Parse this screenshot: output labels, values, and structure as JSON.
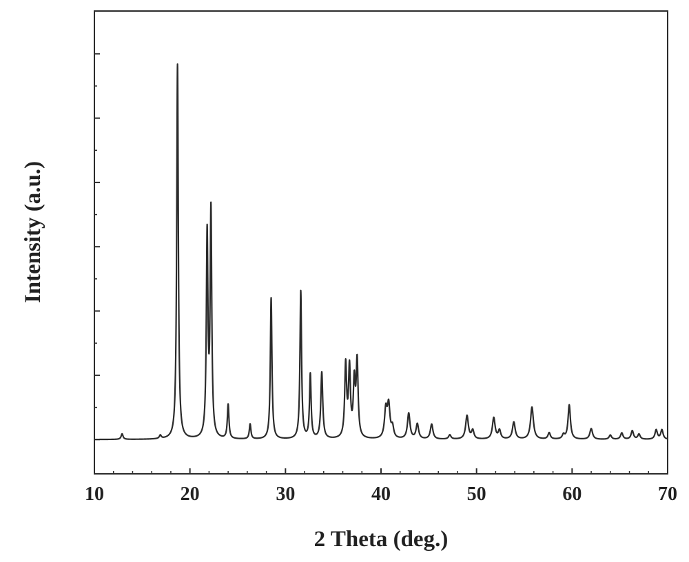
{
  "chart_data": {
    "type": "line",
    "title": "",
    "xlabel": "2 Theta (deg.)",
    "ylabel": "Intensity (a.u.)",
    "xlim": [
      10,
      70
    ],
    "ylim": [
      -8,
      100
    ],
    "x_ticks": [
      "10",
      "20",
      "30",
      "40",
      "50",
      "60",
      "70"
    ],
    "y_tick_values": [
      0,
      15,
      30,
      45,
      60,
      75,
      90
    ],
    "y_tick_labels_shown": false,
    "grid": false,
    "legend": "none",
    "line_color": "#2b2b2b",
    "baseline": 0,
    "peaks": [
      {
        "pos": 12.9,
        "height": 1.3,
        "width": 0.12
      },
      {
        "pos": 16.9,
        "height": 0.8,
        "width": 0.12
      },
      {
        "pos": 18.7,
        "height": 87.5,
        "width": 0.1
      },
      {
        "pos": 21.8,
        "height": 47,
        "width": 0.1
      },
      {
        "pos": 22.2,
        "height": 52.5,
        "width": 0.1
      },
      {
        "pos": 24.0,
        "height": 8,
        "width": 0.1
      },
      {
        "pos": 26.3,
        "height": 3.5,
        "width": 0.1
      },
      {
        "pos": 28.5,
        "height": 33,
        "width": 0.1
      },
      {
        "pos": 31.6,
        "height": 34.5,
        "width": 0.1
      },
      {
        "pos": 32.6,
        "height": 15,
        "width": 0.1
      },
      {
        "pos": 33.8,
        "height": 15.5,
        "width": 0.12
      },
      {
        "pos": 36.3,
        "height": 17,
        "width": 0.12
      },
      {
        "pos": 36.7,
        "height": 16,
        "width": 0.12
      },
      {
        "pos": 37.2,
        "height": 12.5,
        "width": 0.12
      },
      {
        "pos": 37.5,
        "height": 17.5,
        "width": 0.12
      },
      {
        "pos": 40.5,
        "height": 6.5,
        "width": 0.16
      },
      {
        "pos": 40.8,
        "height": 7.5,
        "width": 0.16
      },
      {
        "pos": 41.2,
        "height": 2.5,
        "width": 0.15
      },
      {
        "pos": 42.9,
        "height": 6,
        "width": 0.16
      },
      {
        "pos": 43.8,
        "height": 3.5,
        "width": 0.16
      },
      {
        "pos": 45.3,
        "height": 3.5,
        "width": 0.16
      },
      {
        "pos": 47.2,
        "height": 1,
        "width": 0.15
      },
      {
        "pos": 49.0,
        "height": 5.5,
        "width": 0.17
      },
      {
        "pos": 49.6,
        "height": 2,
        "width": 0.15
      },
      {
        "pos": 51.8,
        "height": 5,
        "width": 0.17
      },
      {
        "pos": 52.4,
        "height": 2,
        "width": 0.15
      },
      {
        "pos": 53.9,
        "height": 4,
        "width": 0.17
      },
      {
        "pos": 55.8,
        "height": 7.5,
        "width": 0.18
      },
      {
        "pos": 57.6,
        "height": 1.5,
        "width": 0.15
      },
      {
        "pos": 59.1,
        "height": 1,
        "width": 0.15
      },
      {
        "pos": 59.7,
        "height": 8,
        "width": 0.15
      },
      {
        "pos": 62.0,
        "height": 2.5,
        "width": 0.17
      },
      {
        "pos": 64.0,
        "height": 1,
        "width": 0.15
      },
      {
        "pos": 65.2,
        "height": 1.5,
        "width": 0.15
      },
      {
        "pos": 66.3,
        "height": 2,
        "width": 0.15
      },
      {
        "pos": 67.0,
        "height": 1.2,
        "width": 0.15
      },
      {
        "pos": 68.8,
        "height": 2.2,
        "width": 0.15
      },
      {
        "pos": 69.4,
        "height": 2.2,
        "width": 0.15
      }
    ]
  }
}
